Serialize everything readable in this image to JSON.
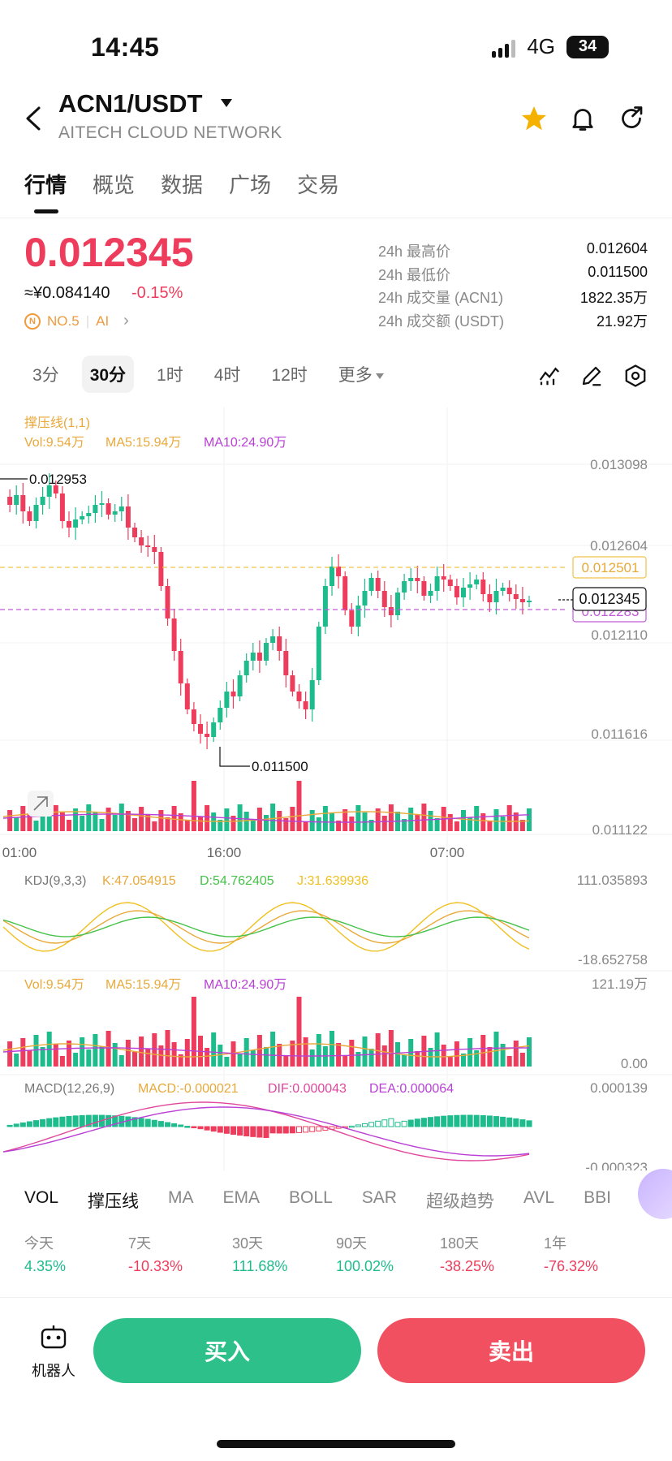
{
  "status_bar": {
    "time": "14:45",
    "network": "4G",
    "battery": "34"
  },
  "header": {
    "pair": "ACN1/USDT",
    "subtitle": "AITECH CLOUD NETWORK",
    "icons": [
      "back-icon",
      "star-icon",
      "bell-icon",
      "share-icon"
    ],
    "star_color": "#f5b100"
  },
  "tabs": [
    "行情",
    "概览",
    "数据",
    "广场",
    "交易"
  ],
  "active_tab": "行情",
  "price": {
    "last": "0.012345",
    "cny": "≈¥0.084140",
    "change": "-0.15%",
    "rank": "NO.5",
    "tag": "AI",
    "color_down": "#ee3d5c",
    "color_up": "#1ebb8c"
  },
  "stats": [
    {
      "label": "24h 最高价",
      "value": "0.012604"
    },
    {
      "label": "24h 最低价",
      "value": "0.011500"
    },
    {
      "label": "24h 成交量 (ACN1)",
      "value": "1822.35万"
    },
    {
      "label": "24h 成交额 (USDT)",
      "value": "21.92万"
    }
  ],
  "timeframes": [
    "3分",
    "30分",
    "1时",
    "4时",
    "12时",
    "更多"
  ],
  "active_timeframe": "30分",
  "main_chart": {
    "indicator_title": "撑压线(1,1)",
    "vol": "Vol:9.54万",
    "ma5": "MA5:15.94万",
    "ma10": "MA10:24.90万",
    "y_axis": [
      "0.013098",
      "0.012604",
      "0.012110",
      "0.011616",
      "0.011122"
    ],
    "x_axis": [
      "01:00",
      "16:00",
      "07:00"
    ],
    "high_marker": "0.012953",
    "low_marker": "0.011500",
    "resistance": "0.012501",
    "current": "0.012345",
    "support": "0.012283"
  },
  "kdj": {
    "title": "KDJ(9,3,3)",
    "k": "K:47.054915",
    "d": "D:54.762405",
    "j": "J:31.639936",
    "max": "111.035893",
    "min": "-18.652758"
  },
  "volume": {
    "vol": "Vol:9.54万",
    "ma5": "MA5:15.94万",
    "ma10": "MA10:24.90万",
    "max": "121.19万",
    "min": "0.00"
  },
  "macd": {
    "title": "MACD(12,26,9)",
    "macd": "MACD:-0.000021",
    "dif": "DIF:0.000043",
    "dea": "DEA:0.000064",
    "max": "0.000139",
    "min": "-0.000323"
  },
  "indicators": [
    "VOL",
    "撑压线",
    "MA",
    "EMA",
    "BOLL",
    "SAR",
    "超级趋势",
    "AVL",
    "BBI"
  ],
  "active_indicators": [
    "VOL",
    "撑压线"
  ],
  "performance": [
    {
      "label": "今天",
      "value": "4.35%",
      "dir": "up"
    },
    {
      "label": "7天",
      "value": "-10.33%",
      "dir": "down"
    },
    {
      "label": "30天",
      "value": "111.68%",
      "dir": "up"
    },
    {
      "label": "90天",
      "value": "100.02%",
      "dir": "up"
    },
    {
      "label": "180天",
      "value": "-38.25%",
      "dir": "down"
    },
    {
      "label": "1年",
      "value": "-76.32%",
      "dir": "down"
    }
  ],
  "actions": {
    "robot": "机器人",
    "buy": "买入",
    "sell": "卖出"
  }
}
